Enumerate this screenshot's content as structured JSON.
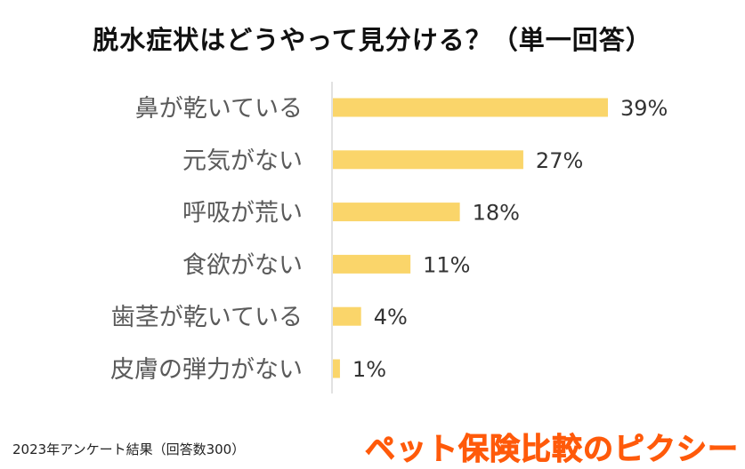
{
  "chart_data": {
    "type": "bar",
    "orientation": "horizontal",
    "title": "脱水症状はどうやって見分ける？（単一回答）",
    "categories": [
      "鼻が乾いている",
      "元気がない",
      "呼吸が荒い",
      "食欲がない",
      "歯茎が乾いている",
      "皮膚の弾力がない"
    ],
    "values": [
      39,
      27,
      18,
      11,
      4,
      1
    ],
    "value_labels": [
      "39%",
      "27%",
      "18%",
      "11%",
      "4%",
      "1%"
    ],
    "xlim": [
      0,
      50
    ],
    "unit": "%",
    "bar_color": "#fad56a",
    "grid": false,
    "legend": null
  },
  "footnote": "2023年アンケート結果（回答数300）",
  "brand": "ペット保険比較のピクシー",
  "colors": {
    "brand": "#ff5a0a",
    "axis": "#d9d9d9",
    "label": "#5a5a5a"
  }
}
